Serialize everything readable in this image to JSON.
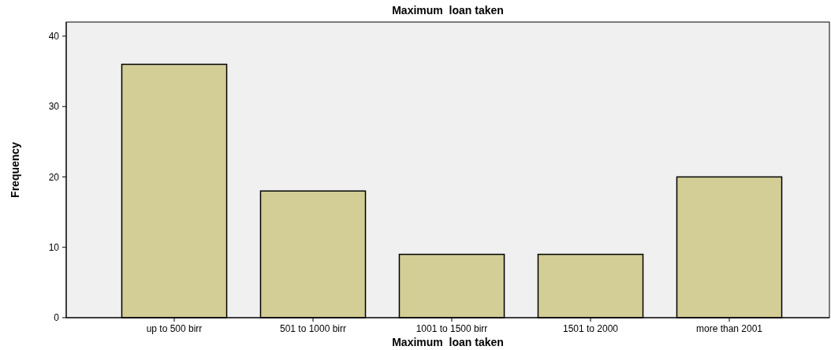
{
  "chart_data": {
    "type": "bar",
    "title": "Maximum  loan taken",
    "xlabel": "Maximum  loan taken",
    "ylabel": "Frequency",
    "categories": [
      "up to 500 birr",
      "501 to 1000 birr",
      "1001 to 1500 birr",
      "1501 to 2000",
      "more than 2001"
    ],
    "values": [
      36,
      18,
      9,
      9,
      20
    ],
    "color": "#d3cd96",
    "ylim": [
      0,
      42
    ],
    "yticks": [
      0,
      10,
      20,
      30,
      40
    ],
    "grid": false
  }
}
